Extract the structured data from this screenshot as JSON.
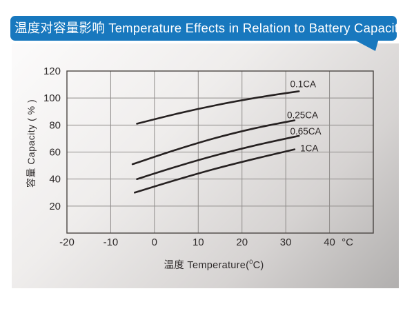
{
  "header": {
    "title": "温度对容量影响 Temperature Effects in Relation to Battery Capacity",
    "bg_color": "#1878be",
    "text_color": "#ffffff"
  },
  "chart_data": {
    "type": "line",
    "title": "温度对容量影响 Temperature Effects in Relation to Battery Capacity",
    "xlabel_prefix": "温度  Temperature(",
    "xlabel_sup": "0",
    "xlabel_suffix": "C)",
    "ylabel": "容量 Capacity ( % )",
    "xlim": [
      -20,
      50
    ],
    "ylim": [
      0,
      120
    ],
    "x_ticks": [
      -20,
      -10,
      0,
      10,
      20,
      30,
      40
    ],
    "x_unit": "°C",
    "y_ticks": [
      120,
      100,
      80,
      60,
      40,
      20
    ],
    "grid": true,
    "legend_position": "inline-labels",
    "series": [
      {
        "name": "0.1CA",
        "points": [
          [
            -4,
            81
          ],
          [
            5.3,
            88.5
          ],
          [
            14.5,
            95
          ],
          [
            23.8,
            100.5
          ],
          [
            33,
            105
          ]
        ],
        "label_pos": [
          31,
          110.5
        ]
      },
      {
        "name": "0.25CA",
        "points": [
          [
            -5,
            51
          ],
          [
            4.3,
            61
          ],
          [
            13.5,
            70
          ],
          [
            22.8,
            77.5
          ],
          [
            32,
            83.5
          ]
        ],
        "label_pos": [
          30.3,
          87.5
        ]
      },
      {
        "name": "0.65CA",
        "points": [
          [
            -4,
            40
          ],
          [
            5.3,
            49.5
          ],
          [
            14.5,
            58
          ],
          [
            23.8,
            65.5
          ],
          [
            33,
            72
          ]
        ],
        "label_pos": [
          31,
          75.5
        ]
      },
      {
        "name": "1CA",
        "points": [
          [
            -4.5,
            30
          ],
          [
            4.6,
            39
          ],
          [
            13.75,
            47.5
          ],
          [
            22.9,
            55
          ],
          [
            32,
            62
          ]
        ],
        "label_pos": [
          33.3,
          63
        ]
      }
    ],
    "line_color": "#262121",
    "grid_color": "#8f8c8a",
    "axis_color": "#4a4542",
    "text_color": "#2f2b2b"
  }
}
